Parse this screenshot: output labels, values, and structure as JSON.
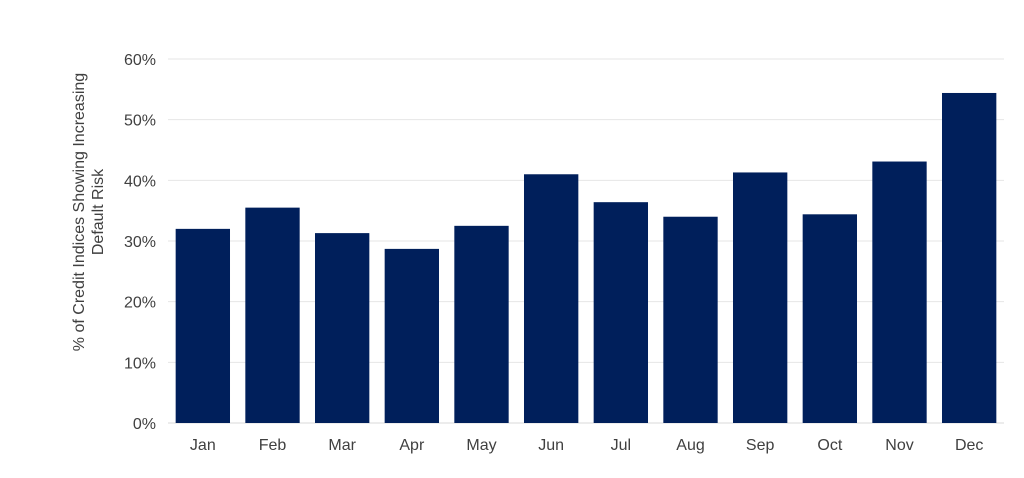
{
  "chart_data": {
    "type": "bar",
    "categories": [
      "Jan",
      "Feb",
      "Mar",
      "Apr",
      "May",
      "Jun",
      "Jul",
      "Aug",
      "Sep",
      "Oct",
      "Nov",
      "Dec"
    ],
    "values": [
      32.0,
      35.5,
      31.3,
      28.7,
      32.5,
      41.0,
      36.4,
      34.0,
      41.3,
      34.4,
      43.1,
      54.4
    ],
    "ylabel_lines": [
      "% of Credit Indices Showing Increasing",
      "Default Risk"
    ],
    "ylim": [
      0,
      60
    ],
    "yticks": [
      "0%",
      "10%",
      "20%",
      "30%",
      "40%",
      "50%",
      "60%"
    ],
    "ytick_values": [
      0,
      10,
      20,
      30,
      40,
      50,
      60
    ],
    "bar_color": "#001f5b",
    "grid": true
  }
}
